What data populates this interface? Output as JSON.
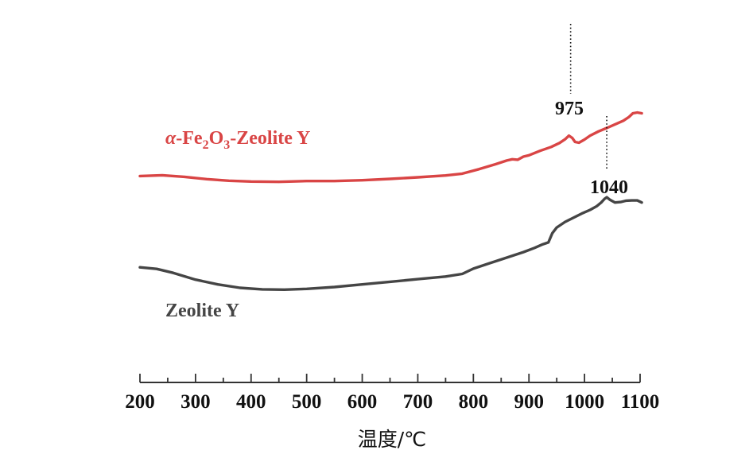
{
  "chart_data": {
    "type": "line",
    "title": "",
    "xlabel": "温度/℃",
    "ylabel": "",
    "xlim": [
      200,
      1100
    ],
    "x_ticks": [
      "200",
      "300",
      "400",
      "500",
      "600",
      "700",
      "800",
      "900",
      "1000",
      "1100"
    ],
    "y_axis_visible": false,
    "grid": false,
    "series": [
      {
        "name": "α-Fe₂O₃-Zeolite Y",
        "label_parts": [
          "α",
          "-Fe",
          "2",
          "O",
          "3",
          "-Zeolite Y"
        ],
        "color": "#d94545",
        "x": [
          200,
          240,
          280,
          320,
          360,
          400,
          450,
          500,
          550,
          600,
          650,
          700,
          750,
          780,
          810,
          840,
          860,
          870,
          880,
          890,
          900,
          920,
          940,
          955,
          965,
          972,
          978,
          983,
          990,
          1000,
          1010,
          1025,
          1040,
          1055,
          1070,
          1080,
          1087,
          1095,
          1103
        ],
        "y": [
          11.7,
          12.0,
          11.4,
          10.5,
          9.9,
          9.6,
          9.5,
          9.8,
          9.8,
          10.1,
          10.6,
          11.2,
          11.9,
          12.6,
          14.3,
          16.2,
          17.6,
          18.1,
          17.9,
          19.1,
          19.6,
          21.3,
          22.8,
          24.3,
          25.7,
          27.1,
          26.2,
          24.7,
          24.4,
          25.6,
          27.1,
          28.7,
          30.0,
          31.4,
          32.8,
          34.2,
          35.6,
          35.9,
          35.6
        ]
      },
      {
        "name": "Zeolite Y",
        "label_parts": [
          "Zeolite Y"
        ],
        "color": "#454545",
        "x": [
          200,
          230,
          260,
          300,
          340,
          380,
          420,
          460,
          500,
          550,
          600,
          650,
          700,
          750,
          780,
          800,
          830,
          860,
          890,
          910,
          925,
          935,
          942,
          950,
          965,
          980,
          995,
          1010,
          1022,
          1030,
          1036,
          1040,
          1046,
          1055,
          1065,
          1075,
          1085,
          1095,
          1103
        ],
        "y": [
          -23.1,
          -23.7,
          -25.2,
          -27.8,
          -29.6,
          -30.9,
          -31.5,
          -31.6,
          -31.3,
          -30.6,
          -29.6,
          -28.6,
          -27.6,
          -26.6,
          -25.6,
          -23.6,
          -21.5,
          -19.4,
          -17.3,
          -15.7,
          -14.3,
          -13.6,
          -10.1,
          -7.9,
          -5.8,
          -4.2,
          -2.6,
          -1.2,
          0.2,
          1.6,
          3.0,
          3.6,
          2.6,
          1.6,
          1.8,
          2.3,
          2.4,
          2.4,
          1.6
        ]
      }
    ],
    "annotations": [
      {
        "label": "975",
        "x": 975,
        "series_index": 0,
        "peak_y": 27.1
      },
      {
        "label": "1040",
        "x": 1040,
        "series_index": 1,
        "peak_y": 3.6
      }
    ]
  }
}
